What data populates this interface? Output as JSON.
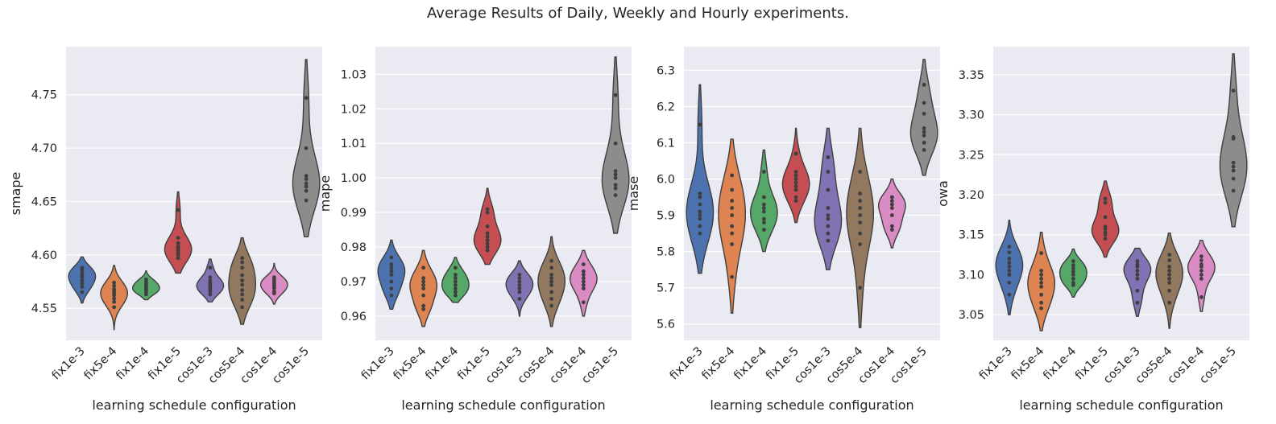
{
  "figure": {
    "title": "Average Results of Daily, Weekly and Hourly experiments."
  },
  "chart_data": [
    {
      "type": "violin",
      "xlabel": "learning schedule configuration",
      "ylabel": "smape",
      "categories": [
        "fix1e-3",
        "fix5e-4",
        "fix1e-4",
        "fix1e-5",
        "cos1e-3",
        "cos5e-4",
        "cos1e-4",
        "cos1e-5"
      ],
      "colors": [
        "#4c72b0",
        "#dd8452",
        "#55a868",
        "#c44e52",
        "#8172b3",
        "#937860",
        "#da8bc3",
        "#8c8c8c"
      ],
      "ylim": [
        4.52,
        4.795
      ],
      "yticks": [
        4.55,
        4.6,
        4.65,
        4.7,
        4.75
      ],
      "ytick_labels": [
        "4.55",
        "4.60",
        "4.65",
        "4.70",
        "4.75"
      ],
      "grid": true,
      "series": [
        {
          "name": "fix1e-3",
          "points": [
            4.565,
            4.57,
            4.573,
            4.576,
            4.579,
            4.581,
            4.583,
            4.586,
            4.588
          ],
          "range": [
            4.555,
            4.598
          ]
        },
        {
          "name": "fix5e-4",
          "points": [
            4.551,
            4.556,
            4.559,
            4.562,
            4.564,
            4.566,
            4.568,
            4.571,
            4.574
          ],
          "range": [
            4.53,
            4.59
          ]
        },
        {
          "name": "fix1e-4",
          "points": [
            4.563,
            4.565,
            4.567,
            4.568,
            4.569,
            4.571,
            4.573,
            4.575,
            4.577
          ],
          "range": [
            4.558,
            4.585
          ]
        },
        {
          "name": "fix1e-5",
          "points": [
            4.597,
            4.6,
            4.602,
            4.604,
            4.606,
            4.608,
            4.611,
            4.616,
            4.642
          ],
          "range": [
            4.583,
            4.659
          ]
        },
        {
          "name": "cos1e-3",
          "points": [
            4.563,
            4.566,
            4.568,
            4.57,
            4.572,
            4.574,
            4.576,
            4.579,
            4.588
          ],
          "range": [
            4.556,
            4.596
          ]
        },
        {
          "name": "cos5e-4",
          "points": [
            4.551,
            4.558,
            4.563,
            4.567,
            4.572,
            4.576,
            4.581,
            4.588,
            4.593,
            4.597
          ],
          "range": [
            4.535,
            4.616
          ]
        },
        {
          "name": "cos1e-4",
          "points": [
            4.564,
            4.566,
            4.569,
            4.571,
            4.573,
            4.575,
            4.577,
            4.579
          ],
          "range": [
            4.554,
            4.592
          ]
        },
        {
          "name": "cos1e-5",
          "points": [
            4.651,
            4.66,
            4.664,
            4.667,
            4.671,
            4.674,
            4.7,
            4.747
          ],
          "range": [
            4.617,
            4.783
          ]
        }
      ]
    },
    {
      "type": "violin",
      "xlabel": "learning schedule configuration",
      "ylabel": "mape",
      "categories": [
        "fix1e-3",
        "fix5e-4",
        "fix1e-4",
        "fix1e-5",
        "cos1e-3",
        "cos5e-4",
        "cos1e-4",
        "cos1e-5"
      ],
      "colors": [
        "#4c72b0",
        "#dd8452",
        "#55a868",
        "#c44e52",
        "#8172b3",
        "#937860",
        "#da8bc3",
        "#8c8c8c"
      ],
      "ylim": [
        0.953,
        1.038
      ],
      "yticks": [
        0.96,
        0.97,
        0.98,
        0.99,
        1.0,
        1.01,
        1.02,
        1.03
      ],
      "ytick_labels": [
        "0.96",
        "0.97",
        "0.98",
        "0.99",
        "1.00",
        "1.01",
        "1.02",
        "1.03"
      ],
      "grid": true,
      "series": [
        {
          "name": "fix1e-3",
          "points": [
            0.966,
            0.968,
            0.97,
            0.972,
            0.973,
            0.974,
            0.975,
            0.977
          ],
          "range": [
            0.962,
            0.982
          ]
        },
        {
          "name": "fix5e-4",
          "points": [
            0.962,
            0.963,
            0.966,
            0.968,
            0.969,
            0.97,
            0.971,
            0.974
          ],
          "range": [
            0.957,
            0.979
          ]
        },
        {
          "name": "fix1e-4",
          "points": [
            0.966,
            0.967,
            0.968,
            0.969,
            0.97,
            0.971,
            0.972,
            0.974
          ],
          "range": [
            0.964,
            0.977
          ]
        },
        {
          "name": "fix1e-5",
          "points": [
            0.979,
            0.98,
            0.981,
            0.982,
            0.983,
            0.984,
            0.986,
            0.99,
            0.991
          ],
          "range": [
            0.975,
            0.997
          ]
        },
        {
          "name": "cos1e-3",
          "points": [
            0.965,
            0.967,
            0.968,
            0.969,
            0.97,
            0.971,
            0.972
          ],
          "range": [
            0.96,
            0.976
          ]
        },
        {
          "name": "cos5e-4",
          "points": [
            0.963,
            0.965,
            0.967,
            0.969,
            0.97,
            0.971,
            0.972,
            0.974,
            0.976
          ],
          "range": [
            0.957,
            0.983
          ]
        },
        {
          "name": "cos1e-4",
          "points": [
            0.964,
            0.968,
            0.969,
            0.97,
            0.971,
            0.972,
            0.973,
            0.975
          ],
          "range": [
            0.96,
            0.979
          ]
        },
        {
          "name": "cos1e-5",
          "points": [
            0.995,
            0.997,
            0.998,
            1.0,
            1.001,
            1.002,
            1.01,
            1.024
          ],
          "range": [
            0.984,
            1.035
          ]
        }
      ]
    },
    {
      "type": "violin",
      "xlabel": "learning schedule configuration",
      "ylabel": "mase",
      "categories": [
        "fix1e-3",
        "fix5e-4",
        "fix1e-4",
        "fix1e-5",
        "cos1e-3",
        "cos5e-4",
        "cos1e-4",
        "cos1e-5"
      ],
      "colors": [
        "#4c72b0",
        "#dd8452",
        "#55a868",
        "#c44e52",
        "#8172b3",
        "#937860",
        "#da8bc3",
        "#8c8c8c"
      ],
      "ylim": [
        5.555,
        6.365
      ],
      "yticks": [
        5.6,
        5.7,
        5.8,
        5.9,
        6.0,
        6.1,
        6.2,
        6.3
      ],
      "ytick_labels": [
        "5.6",
        "5.7",
        "5.8",
        "5.9",
        "6.0",
        "6.1",
        "6.2",
        "6.3"
      ],
      "grid": true,
      "series": [
        {
          "name": "fix1e-3",
          "points": [
            5.85,
            5.87,
            5.89,
            5.9,
            5.91,
            5.93,
            5.95,
            5.96,
            6.15
          ],
          "range": [
            5.74,
            6.26
          ]
        },
        {
          "name": "fix5e-4",
          "points": [
            5.73,
            5.82,
            5.85,
            5.87,
            5.9,
            5.92,
            5.94,
            5.97,
            6.01
          ],
          "range": [
            5.63,
            6.11
          ]
        },
        {
          "name": "fix1e-4",
          "points": [
            5.86,
            5.88,
            5.89,
            5.91,
            5.92,
            5.93,
            5.95,
            6.02
          ],
          "range": [
            5.8,
            6.08
          ]
        },
        {
          "name": "fix1e-5",
          "points": [
            5.94,
            5.95,
            5.97,
            5.98,
            5.99,
            6.0,
            6.01,
            6.02,
            6.07
          ],
          "range": [
            5.88,
            6.14
          ]
        },
        {
          "name": "cos1e-3",
          "points": [
            5.83,
            5.85,
            5.87,
            5.89,
            5.9,
            5.92,
            5.97,
            6.02,
            6.06
          ],
          "range": [
            5.75,
            6.14
          ]
        },
        {
          "name": "cos5e-4",
          "points": [
            5.7,
            5.82,
            5.85,
            5.88,
            5.9,
            5.92,
            5.94,
            5.96,
            6.02
          ],
          "range": [
            5.59,
            6.14
          ]
        },
        {
          "name": "cos1e-4",
          "points": [
            5.86,
            5.87,
            5.9,
            5.92,
            5.93,
            5.94,
            5.95
          ],
          "range": [
            5.81,
            6.0
          ]
        },
        {
          "name": "cos1e-5",
          "points": [
            6.08,
            6.1,
            6.12,
            6.13,
            6.14,
            6.18,
            6.21,
            6.26
          ],
          "range": [
            6.01,
            6.33
          ]
        }
      ]
    },
    {
      "type": "violin",
      "xlabel": "learning schedule configuration",
      "ylabel": "owa",
      "categories": [
        "fix1e-3",
        "fix5e-4",
        "fix1e-4",
        "fix1e-5",
        "cos1e-3",
        "cos5e-4",
        "cos1e-4",
        "cos1e-5"
      ],
      "colors": [
        "#4c72b0",
        "#dd8452",
        "#55a868",
        "#c44e52",
        "#8172b3",
        "#937860",
        "#da8bc3",
        "#8c8c8c"
      ],
      "ylim": [
        3.018,
        3.385
      ],
      "yticks": [
        3.05,
        3.1,
        3.15,
        3.2,
        3.25,
        3.3,
        3.35
      ],
      "ytick_labels": [
        "3.05",
        "3.10",
        "3.15",
        "3.20",
        "3.25",
        "3.30",
        "3.35"
      ],
      "grid": true,
      "series": [
        {
          "name": "fix1e-3",
          "points": [
            3.075,
            3.09,
            3.1,
            3.105,
            3.11,
            3.115,
            3.12,
            3.128,
            3.135
          ],
          "range": [
            3.05,
            3.168
          ]
        },
        {
          "name": "fix5e-4",
          "points": [
            3.058,
            3.065,
            3.075,
            3.085,
            3.09,
            3.095,
            3.1,
            3.105,
            3.127
          ],
          "range": [
            3.03,
            3.153
          ]
        },
        {
          "name": "fix1e-4",
          "points": [
            3.087,
            3.09,
            3.095,
            3.1,
            3.104,
            3.108,
            3.112,
            3.117
          ],
          "range": [
            3.072,
            3.132
          ]
        },
        {
          "name": "fix1e-5",
          "points": [
            3.145,
            3.15,
            3.153,
            3.157,
            3.16,
            3.172,
            3.19,
            3.195
          ],
          "range": [
            3.122,
            3.217
          ]
        },
        {
          "name": "cos1e-3",
          "points": [
            3.065,
            3.08,
            3.095,
            3.1,
            3.105,
            3.11,
            3.113,
            3.117
          ],
          "range": [
            3.048,
            3.133
          ]
        },
        {
          "name": "cos5e-4",
          "points": [
            3.065,
            3.08,
            3.09,
            3.095,
            3.1,
            3.105,
            3.11,
            3.118,
            3.125
          ],
          "range": [
            3.033,
            3.152
          ]
        },
        {
          "name": "cos1e-4",
          "points": [
            3.072,
            3.095,
            3.1,
            3.105,
            3.11,
            3.113,
            3.118,
            3.123
          ],
          "range": [
            3.054,
            3.143
          ]
        },
        {
          "name": "cos1e-5",
          "points": [
            3.205,
            3.22,
            3.23,
            3.235,
            3.24,
            3.27,
            3.272,
            3.33
          ],
          "range": [
            3.16,
            3.376
          ]
        }
      ]
    }
  ]
}
